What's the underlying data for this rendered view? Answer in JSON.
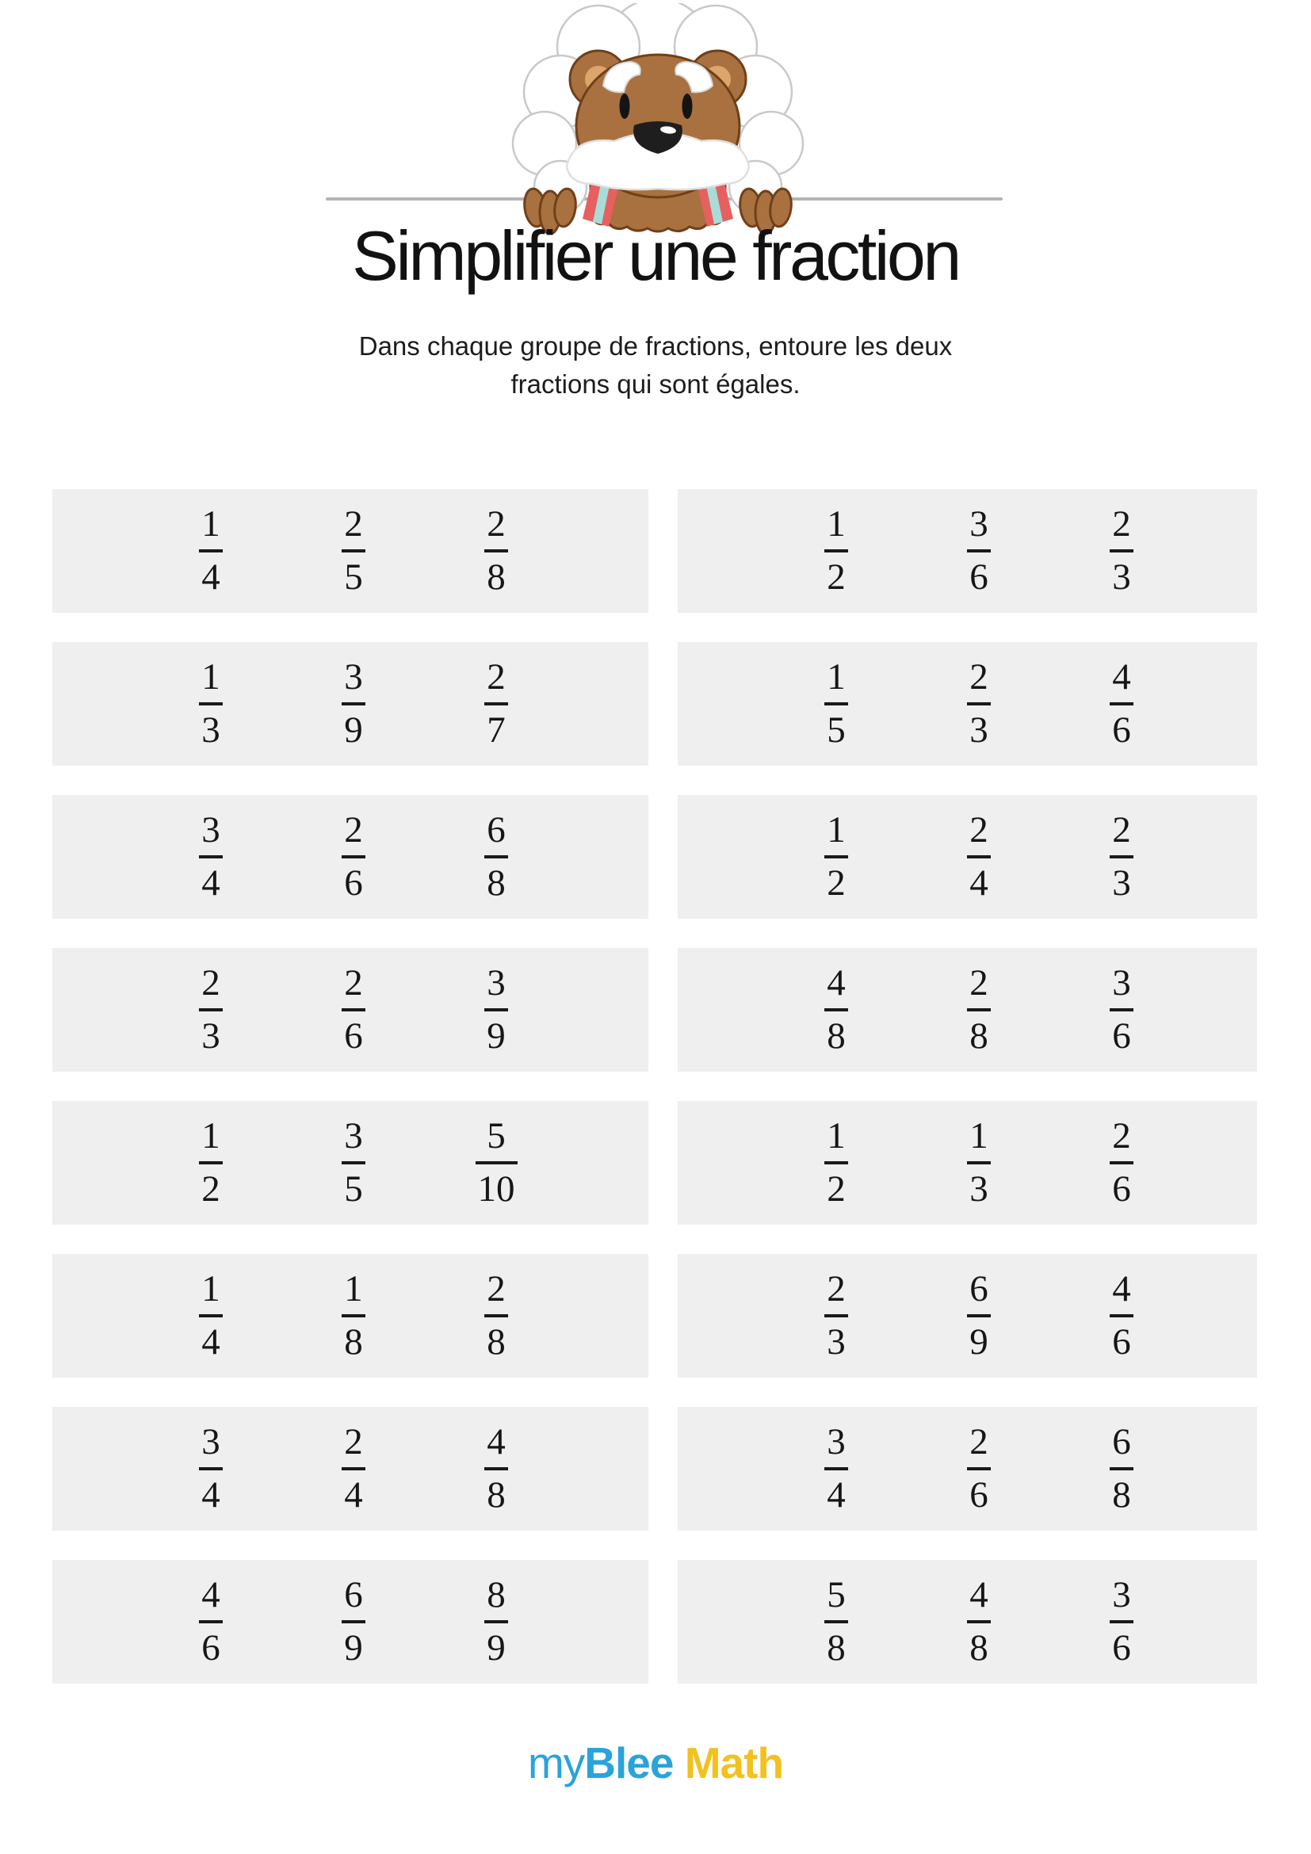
{
  "page": {
    "title": "Simplifier une fraction",
    "instructions": [
      "Dans chaque groupe de fractions, entoure les deux",
      "fractions qui sont égales."
    ]
  },
  "mascot": {
    "icon": "lion-einstein-mascot-icon"
  },
  "colors": {
    "group_bg": "#efefef",
    "divider": "#b4b4b4",
    "text": "#161616",
    "logo_blue": "#29a3db",
    "logo_yellow": "#f2c11e"
  },
  "exercise": {
    "rows": [
      {
        "left": [
          [
            "1",
            "4"
          ],
          [
            "2",
            "5"
          ],
          [
            "2",
            "8"
          ]
        ],
        "right": [
          [
            "1",
            "2"
          ],
          [
            "3",
            "6"
          ],
          [
            "2",
            "3"
          ]
        ]
      },
      {
        "left": [
          [
            "1",
            "3"
          ],
          [
            "3",
            "9"
          ],
          [
            "2",
            "7"
          ]
        ],
        "right": [
          [
            "1",
            "5"
          ],
          [
            "2",
            "3"
          ],
          [
            "4",
            "6"
          ]
        ]
      },
      {
        "left": [
          [
            "3",
            "4"
          ],
          [
            "2",
            "6"
          ],
          [
            "6",
            "8"
          ]
        ],
        "right": [
          [
            "1",
            "2"
          ],
          [
            "2",
            "4"
          ],
          [
            "2",
            "3"
          ]
        ]
      },
      {
        "left": [
          [
            "2",
            "3"
          ],
          [
            "2",
            "6"
          ],
          [
            "3",
            "9"
          ]
        ],
        "right": [
          [
            "4",
            "8"
          ],
          [
            "2",
            "8"
          ],
          [
            "3",
            "6"
          ]
        ]
      },
      {
        "left": [
          [
            "1",
            "2"
          ],
          [
            "3",
            "5"
          ],
          [
            "5",
            "10"
          ]
        ],
        "right": [
          [
            "1",
            "2"
          ],
          [
            "1",
            "3"
          ],
          [
            "2",
            "6"
          ]
        ]
      },
      {
        "left": [
          [
            "1",
            "4"
          ],
          [
            "1",
            "8"
          ],
          [
            "2",
            "8"
          ]
        ],
        "right": [
          [
            "2",
            "3"
          ],
          [
            "6",
            "9"
          ],
          [
            "4",
            "6"
          ]
        ]
      },
      {
        "left": [
          [
            "3",
            "4"
          ],
          [
            "2",
            "4"
          ],
          [
            "4",
            "8"
          ]
        ],
        "right": [
          [
            "3",
            "4"
          ],
          [
            "2",
            "6"
          ],
          [
            "6",
            "8"
          ]
        ]
      },
      {
        "left": [
          [
            "4",
            "6"
          ],
          [
            "6",
            "9"
          ],
          [
            "8",
            "9"
          ]
        ],
        "right": [
          [
            "5",
            "8"
          ],
          [
            "4",
            "8"
          ],
          [
            "3",
            "6"
          ]
        ]
      }
    ]
  },
  "footer": {
    "logo_part1": "my",
    "logo_part2": "Blee",
    "logo_part3": " Math"
  }
}
